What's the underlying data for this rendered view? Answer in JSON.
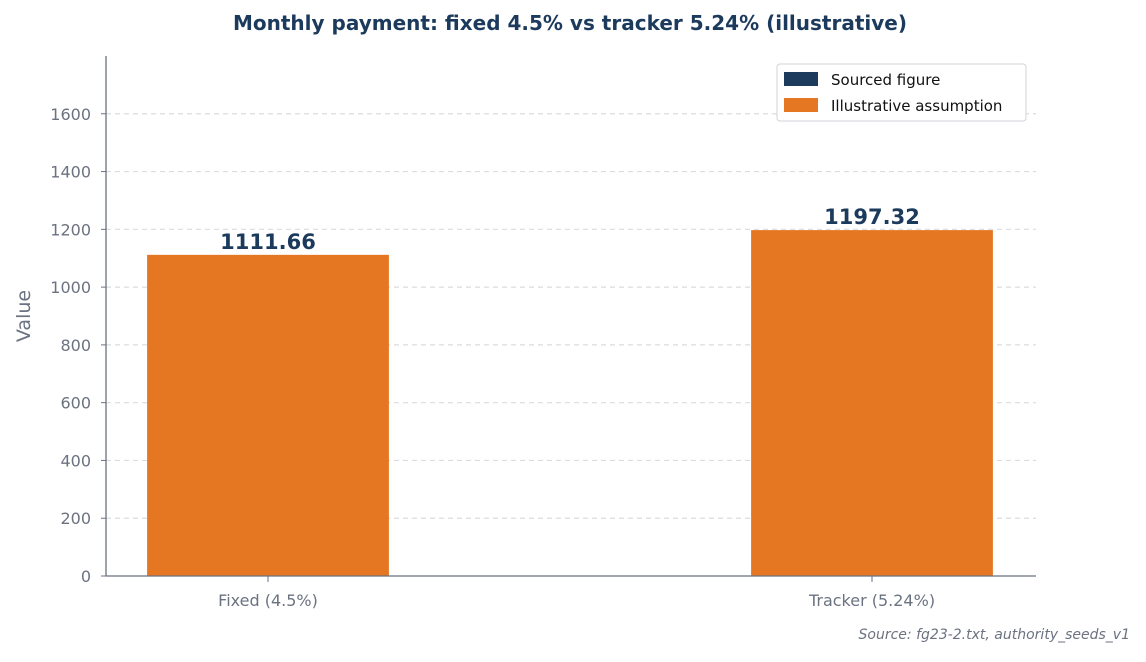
{
  "chart_data": {
    "type": "bar",
    "title": "Monthly payment: fixed 4.5% vs tracker 5.24% (illustrative)",
    "xlabel": "",
    "ylabel": "Value",
    "categories": [
      "Fixed (4.5%)",
      "Tracker (5.24%)"
    ],
    "values": [
      1111.66,
      1197.32
    ],
    "value_labels": [
      "1111.66",
      "1197.32"
    ],
    "bar_kind": [
      "Illustrative assumption",
      "Illustrative assumption"
    ],
    "ylim": [
      0,
      1800
    ],
    "yticks": [
      0,
      200,
      400,
      600,
      800,
      1000,
      1200,
      1400,
      1600
    ],
    "grid": "horizontal dashed",
    "legend": {
      "placement": "top-right",
      "entries": [
        {
          "label": "Sourced figure",
          "color": "#1b3a5c"
        },
        {
          "label": "Illustrative assumption",
          "color": "#e67722"
        }
      ]
    },
    "source_note": "Source: fg23-2.txt, authority_seeds_v1"
  },
  "colors": {
    "title": "#1b3a5c",
    "data_label": "#1b3a5c",
    "axis": "#6b7280",
    "tick_text": "#6b7280",
    "grid": "#d9dce1",
    "sourced": "#1b3a5c",
    "illustrative": "#e67722"
  }
}
